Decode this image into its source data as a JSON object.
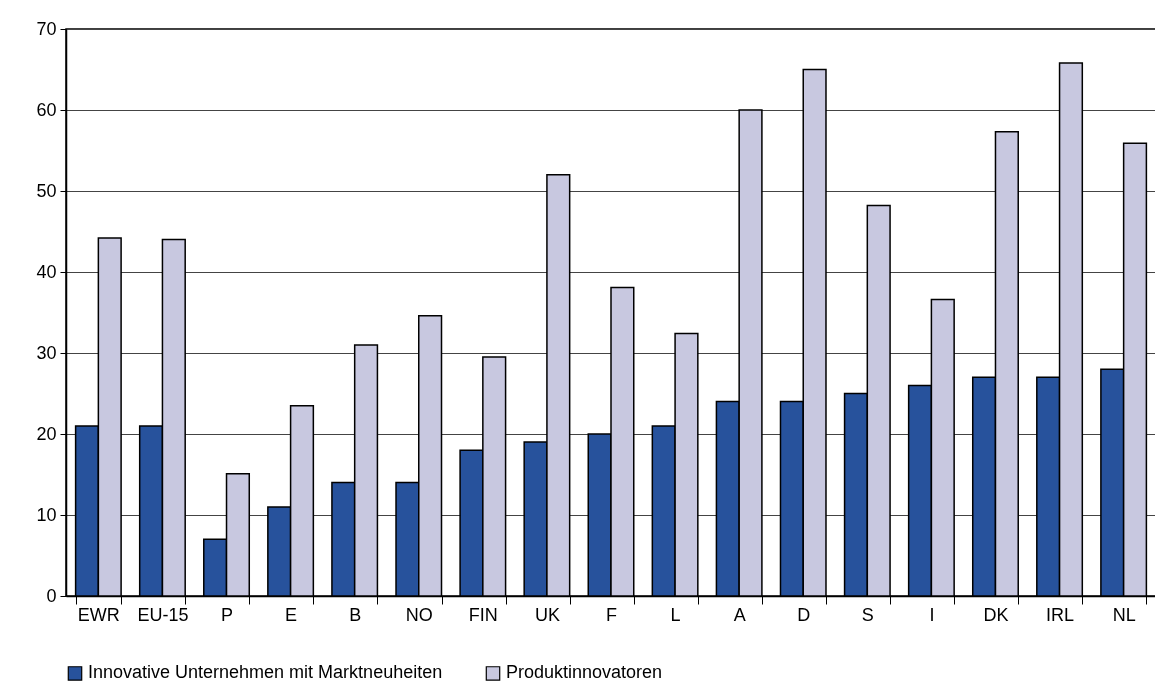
{
  "chart_data": {
    "type": "bar",
    "categories": [
      "EWR",
      "EU-15",
      "P",
      "E",
      "B",
      "NO",
      "FIN",
      "UK",
      "F",
      "L",
      "A",
      "D",
      "S",
      "I",
      "DK",
      "IRL",
      "NL"
    ],
    "series": [
      {
        "name": "Innovative Unternehmen mit Marktneuheiten",
        "color": "#27529c",
        "values": [
          21,
          21,
          7,
          11,
          14,
          14,
          18,
          19,
          20,
          21,
          24,
          24,
          25,
          26,
          27,
          27,
          28
        ]
      },
      {
        "name": "Produktinnovatoren",
        "color": "#c8c8e0",
        "values": [
          44.2,
          44,
          15.1,
          23.5,
          31,
          34.6,
          29.5,
          52,
          38.1,
          32.4,
          60,
          65,
          48.2,
          36.6,
          57.3,
          65.8,
          55.9
        ]
      }
    ],
    "ylim": [
      0,
      70
    ],
    "yticks": [
      0,
      10,
      20,
      30,
      40,
      50,
      60,
      70
    ],
    "grid": "y",
    "legend": "bottom"
  }
}
